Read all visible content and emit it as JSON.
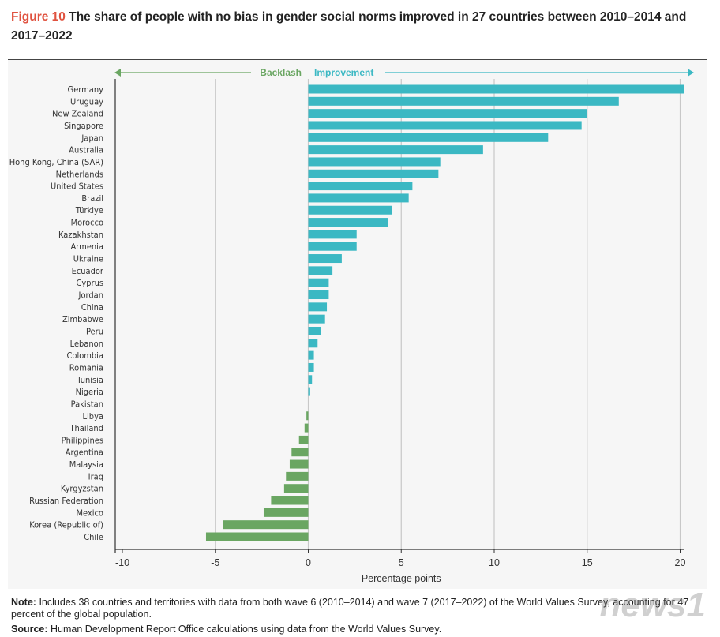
{
  "title": {
    "figure_label": "Figure 10",
    "text": "The share of people with no bias in gender social norms improved in 27 countries between 2010–2014 and 2017–2022"
  },
  "chart_data": {
    "type": "bar",
    "orientation": "horizontal",
    "xlabel": "Percentage points",
    "xlim": [
      -10,
      21
    ],
    "xticks": [
      -10,
      -5,
      0,
      5,
      10,
      15,
      20
    ],
    "grid": true,
    "direction_labels": {
      "left": "Backlash",
      "right": "Improvement"
    },
    "colors": {
      "positive": "#3bb8c3",
      "negative": "#6aa662"
    },
    "categories": [
      "Germany",
      "Uruguay",
      "New Zealand",
      "Singapore",
      "Japan",
      "Australia",
      "Hong Kong, China (SAR)",
      "Netherlands",
      "United States",
      "Brazil",
      "Türkiye",
      "Morocco",
      "Kazakhstan",
      "Armenia",
      "Ukraine",
      "Ecuador",
      "Cyprus",
      "Jordan",
      "China",
      "Zimbabwe",
      "Peru",
      "Lebanon",
      "Colombia",
      "Romania",
      "Tunisia",
      "Nigeria",
      "Pakistan",
      "Libya",
      "Thailand",
      "Philippines",
      "Argentina",
      "Malaysia",
      "Iraq",
      "Kyrgyzstan",
      "Russian Federation",
      "Mexico",
      "Korea (Republic of)",
      "Chile"
    ],
    "values": [
      20.2,
      16.7,
      15.0,
      14.7,
      12.9,
      9.4,
      7.1,
      7.0,
      5.6,
      5.4,
      4.5,
      4.3,
      2.6,
      2.6,
      1.8,
      1.3,
      1.1,
      1.1,
      1.0,
      0.9,
      0.7,
      0.5,
      0.3,
      0.3,
      0.2,
      0.1,
      0.0,
      -0.1,
      -0.2,
      -0.5,
      -0.9,
      -1.0,
      -1.2,
      -1.3,
      -2.0,
      -2.4,
      -4.6,
      -5.5
    ]
  },
  "notes": {
    "note_label": "Note:",
    "note_text": "Includes 38 countries and territories with data from both wave 6 (2010–2014) and wave 7 (2017–2022) of the World Values Survey, accounting for 47 percent of the global population.",
    "source_label": "Source:",
    "source_text": "Human Development Report Office calculations using data from the World Values Survey."
  },
  "watermark": "news1"
}
